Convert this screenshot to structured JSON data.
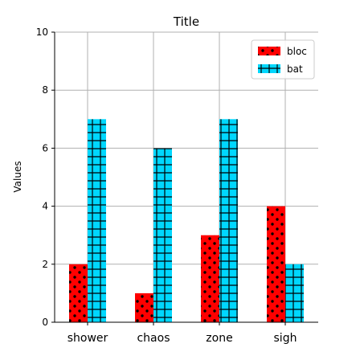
{
  "chart_data": {
    "type": "bar",
    "title": "Title",
    "xlabel": "",
    "ylabel": "Values",
    "ylim": [
      0,
      10
    ],
    "yticks": [
      0,
      2,
      4,
      6,
      8,
      10
    ],
    "grid": true,
    "legend_position": "top-right",
    "categories": [
      "shower",
      "chaos",
      "zone",
      "sigh"
    ],
    "series": [
      {
        "name": "bloc",
        "values": [
          2,
          1,
          3,
          4
        ],
        "color": "#ff0000",
        "pattern": "dots"
      },
      {
        "name": "bat",
        "values": [
          7,
          6,
          7,
          2
        ],
        "color": "#00d7ff",
        "pattern": "grid"
      }
    ]
  }
}
